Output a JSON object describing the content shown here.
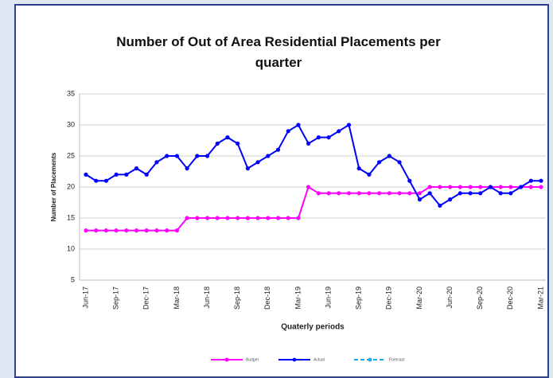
{
  "chart_data": {
    "type": "line",
    "title": "Number of Out of Area Residential Placements per quarter",
    "xlabel": "Quaterly periods",
    "ylabel": "Number of Placements",
    "categories": [
      "Jun-17",
      null,
      null,
      "Sep-17",
      null,
      null,
      "Dec-17",
      null,
      null,
      "Mar-18",
      null,
      null,
      "Jun-18",
      null,
      null,
      "Sep-18",
      null,
      null,
      "Dec-18",
      null,
      null,
      "Mar-19",
      null,
      null,
      "Jun-19",
      null,
      null,
      "Sep-19",
      null,
      null,
      "Dec-19",
      null,
      null,
      "Mar-20",
      null,
      null,
      "Jun-20",
      null,
      null,
      "Sep-20",
      null,
      null,
      "Dec-20",
      null,
      null,
      "Mar-21"
    ],
    "series": [
      {
        "name": "Budget",
        "color": "#ff00ff",
        "values": [
          13,
          13,
          13,
          13,
          13,
          13,
          13,
          13,
          13,
          13,
          15,
          15,
          15,
          15,
          15,
          15,
          15,
          15,
          15,
          15,
          15,
          15,
          20,
          19,
          19,
          19,
          19,
          19,
          19,
          19,
          19,
          19,
          19,
          19,
          20,
          20,
          20,
          20,
          20,
          20,
          20,
          20,
          20,
          20,
          20,
          20
        ]
      },
      {
        "name": "Actual",
        "color": "#0000ff",
        "values": [
          22,
          21,
          21,
          22,
          22,
          23,
          22,
          24,
          25,
          25,
          23,
          25,
          25,
          27,
          28,
          27,
          23,
          24,
          25,
          26,
          29,
          30,
          27,
          28,
          28,
          29,
          30,
          23,
          22,
          24,
          25,
          24,
          21,
          18,
          19,
          17,
          18,
          19,
          19,
          19,
          20,
          19,
          19,
          20,
          21,
          21
        ]
      },
      {
        "name": "Forecast",
        "color": "#00b0f0",
        "values": [
          null,
          null,
          null,
          null,
          null,
          null,
          null,
          null,
          null,
          null,
          null,
          null,
          null,
          null,
          null,
          null,
          null,
          null,
          null,
          null,
          null,
          null,
          null,
          null,
          null,
          null,
          null,
          null,
          null,
          null,
          null,
          null,
          null,
          null,
          null,
          null,
          null,
          null,
          null,
          null,
          null,
          null,
          null,
          null,
          null,
          null
        ]
      }
    ],
    "ylim": [
      5,
      35
    ],
    "yticks": [
      5,
      10,
      15,
      20,
      25,
      30,
      35
    ],
    "grid": true,
    "legend": "bottom"
  }
}
